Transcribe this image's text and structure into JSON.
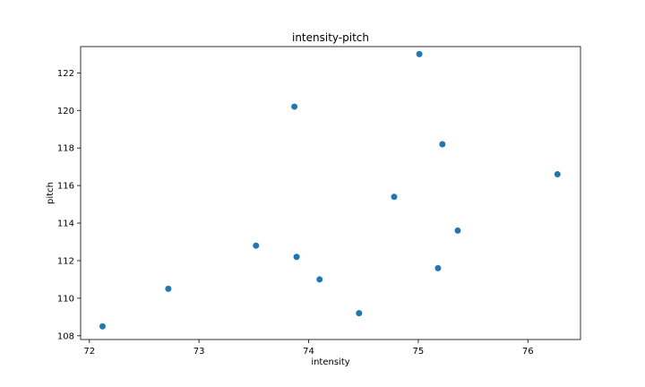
{
  "chart_data": {
    "type": "scatter",
    "title": "intensity-pitch",
    "xlabel": "intensity",
    "ylabel": "pitch",
    "xlim": [
      71.92,
      76.48
    ],
    "ylim": [
      107.8,
      123.4
    ],
    "xticks": [
      72,
      73,
      74,
      75,
      76
    ],
    "yticks": [
      108,
      110,
      112,
      114,
      116,
      118,
      120,
      122
    ],
    "grid": false,
    "marker_color": "#1f77b4",
    "points": [
      {
        "x": 72.12,
        "y": 108.5
      },
      {
        "x": 72.72,
        "y": 110.5
      },
      {
        "x": 73.52,
        "y": 112.8
      },
      {
        "x": 73.87,
        "y": 120.2
      },
      {
        "x": 73.89,
        "y": 112.2
      },
      {
        "x": 74.1,
        "y": 111.0
      },
      {
        "x": 74.46,
        "y": 109.2
      },
      {
        "x": 74.78,
        "y": 115.4
      },
      {
        "x": 75.01,
        "y": 123.0
      },
      {
        "x": 75.18,
        "y": 111.6
      },
      {
        "x": 75.22,
        "y": 118.2
      },
      {
        "x": 75.36,
        "y": 113.6
      },
      {
        "x": 76.27,
        "y": 116.6
      }
    ]
  }
}
